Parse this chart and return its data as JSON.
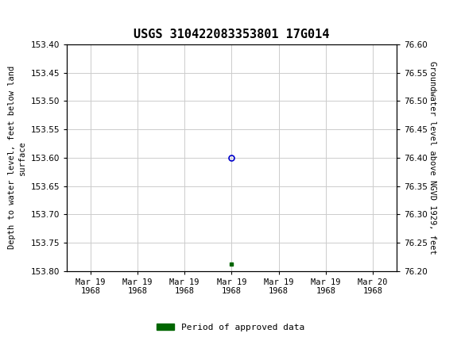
{
  "title": "USGS 310422083353801 17G014",
  "title_fontsize": 11,
  "header_bg_color": "#1a6b3c",
  "ylabel_left": "Depth to water level, feet below land\nsurface",
  "ylabel_right": "Groundwater level above NGVD 1929, feet",
  "ylim_left_bottom": 153.8,
  "ylim_left_top": 153.4,
  "ylim_right_bottom": 76.2,
  "ylim_right_top": 76.6,
  "yticks_left": [
    153.4,
    153.45,
    153.5,
    153.55,
    153.6,
    153.65,
    153.7,
    153.75,
    153.8
  ],
  "yticks_right": [
    76.6,
    76.55,
    76.5,
    76.45,
    76.4,
    76.35,
    76.3,
    76.25,
    76.2
  ],
  "data_point_x": 3.5,
  "data_point_y": 153.6,
  "data_point_color": "#0000cc",
  "data_point_markersize": 5,
  "green_square_x": 3.5,
  "green_square_y": 153.787,
  "green_square_color": "#006600",
  "grid_color": "#cccccc",
  "grid_linewidth": 0.7,
  "legend_label": "Period of approved data",
  "legend_color": "#006600",
  "font_family": "monospace",
  "tick_fontsize": 7.5,
  "axis_label_fontsize": 7.5,
  "xmin": 0,
  "xmax": 7,
  "xtick_positions": [
    0.5,
    1.5,
    2.5,
    3.5,
    4.5,
    5.5,
    6.5
  ],
  "xtick_labels": [
    "Mar 19\n1968",
    "Mar 19\n1968",
    "Mar 19\n1968",
    "Mar 19\n1968",
    "Mar 19\n1968",
    "Mar 19\n1968",
    "Mar 20\n1968"
  ]
}
